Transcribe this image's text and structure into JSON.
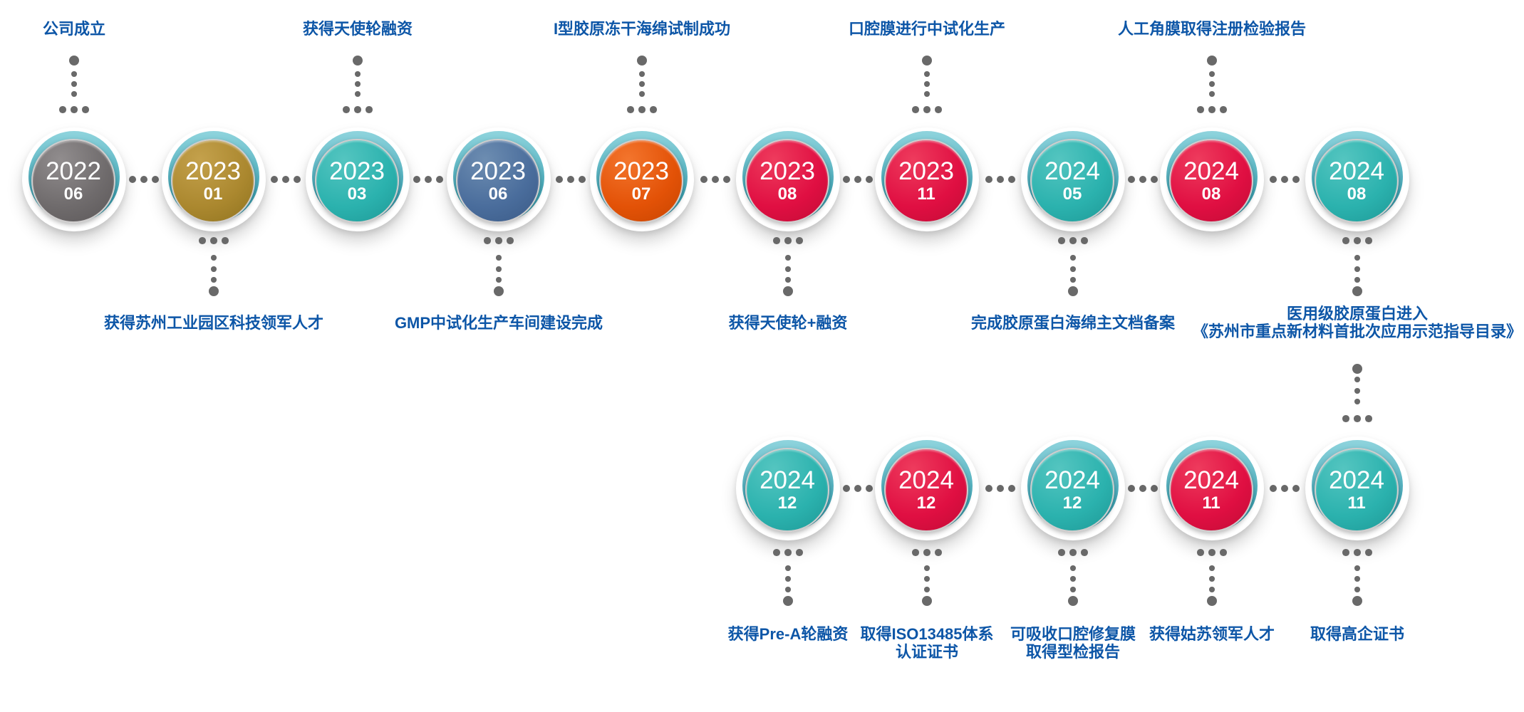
{
  "milestones": [
    {
      "year": "2022",
      "month": "06",
      "color": "gray",
      "label": [
        "公司成立"
      ]
    },
    {
      "year": "2023",
      "month": "01",
      "color": "gold",
      "label": [
        "获得苏州工业园区科技领军人才"
      ]
    },
    {
      "year": "2023",
      "month": "03",
      "color": "teal",
      "label": [
        "获得天使轮融资"
      ]
    },
    {
      "year": "2023",
      "month": "06",
      "color": "blue",
      "label": [
        "GMP中试化生产车间建设完成"
      ]
    },
    {
      "year": "2023",
      "month": "07",
      "color": "orange",
      "label": [
        "I型胶原冻干海绵试制成功"
      ]
    },
    {
      "year": "2023",
      "month": "08",
      "color": "red",
      "label": [
        "获得天使轮+融资"
      ]
    },
    {
      "year": "2023",
      "month": "11",
      "color": "red",
      "label": [
        "口腔膜进行中试化生产"
      ]
    },
    {
      "year": "2024",
      "month": "05",
      "color": "teal",
      "label": [
        "完成胶原蛋白海绵主文档备案"
      ]
    },
    {
      "year": "2024",
      "month": "08",
      "color": "red",
      "label": [
        "人工角膜取得注册检验报告"
      ]
    },
    {
      "year": "2024",
      "month": "08",
      "color": "teal",
      "label": [
        "医用级胶原蛋白进入",
        "《苏州市重点新材料首批次应用示范指导目录》"
      ]
    },
    {
      "year": "2024",
      "month": "12",
      "color": "teal",
      "label": [
        "获得Pre-A轮融资"
      ]
    },
    {
      "year": "2024",
      "month": "12",
      "color": "red",
      "label": [
        "取得ISO13485体系",
        "认证证书"
      ]
    },
    {
      "year": "2024",
      "month": "12",
      "color": "teal",
      "label": [
        "可吸收口腔修复膜",
        "取得型检报告"
      ]
    },
    {
      "year": "2024",
      "month": "11",
      "color": "red",
      "label": [
        "获得姑苏领军人才"
      ]
    },
    {
      "year": "2024",
      "month": "11",
      "color": "teal",
      "label": [
        "取得高企证书"
      ]
    }
  ],
  "palette": {
    "gray": {
      "light": "#918d8e",
      "base": "#6f6b6c",
      "dark": "#5b5758"
    },
    "gold": {
      "light": "#c4a14c",
      "base": "#ab882f",
      "dark": "#8f731f"
    },
    "teal": {
      "light": "#54c5c0",
      "base": "#2bb2ae",
      "dark": "#1e9896"
    },
    "blue": {
      "light": "#6d8db1",
      "base": "#4a6d9c",
      "dark": "#3a5a86"
    },
    "orange": {
      "light": "#f3752d",
      "base": "#e35207",
      "dark": "#c64500"
    },
    "red": {
      "light": "#ee3b5d",
      "base": "#e00f42",
      "dark": "#c10b36"
    }
  },
  "arc_colors": {
    "top": "#8fd4dd",
    "base": "#3fa4b4"
  },
  "dot_color": "#696969",
  "label_color": "#0d56a7"
}
